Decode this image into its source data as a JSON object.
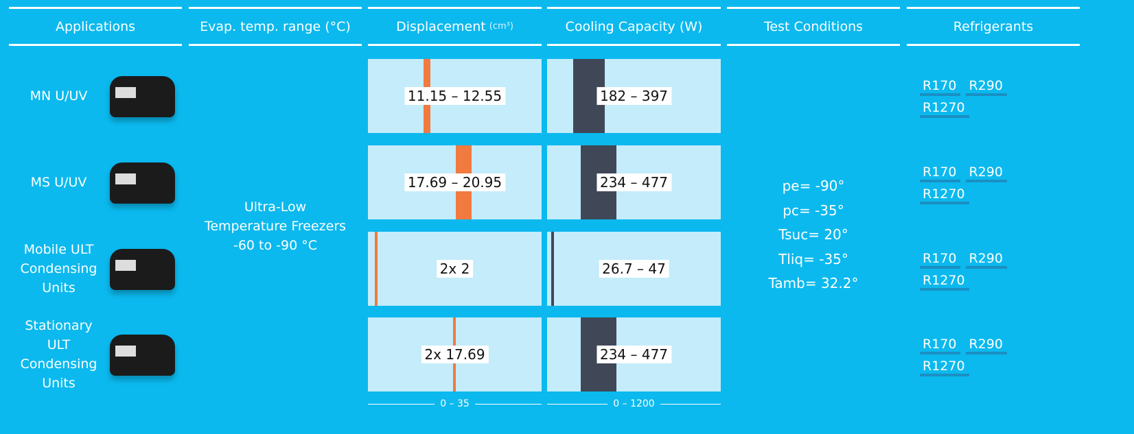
{
  "header": {
    "columns": [
      "Applications",
      "Evap. temp. range (°C)",
      "Displacement",
      "Cooling Capacity (W)",
      "Test Conditions",
      "Refrigerants"
    ],
    "displacement_unit": "(cm³)"
  },
  "evap_range": [
    "Ultra-Low",
    "Temperature Freezers",
    "-60 to -90 °C"
  ],
  "test_conditions": [
    "pe= -90°",
    "pc= -35°",
    "Tsuc= 20°",
    "Tliq= -35°",
    "Tamb= 32.2°"
  ],
  "scales": {
    "displacement": {
      "min": 0,
      "max": 35,
      "label": "0 – 35"
    },
    "capacity": {
      "min": 0,
      "max": 1200,
      "label": "0 – 1200"
    }
  },
  "rows": [
    {
      "application": [
        "MN U/UV"
      ],
      "displacement": {
        "min": 11.15,
        "max": 12.55,
        "label": "11.15 – 12.55"
      },
      "capacity": {
        "min": 182,
        "max": 397,
        "label": "182 – 397"
      },
      "refrigerants": [
        "R170",
        "R290",
        "R1270"
      ]
    },
    {
      "application": [
        "MS U/UV"
      ],
      "displacement": {
        "min": 17.69,
        "max": 20.95,
        "label": "17.69 – 20.95"
      },
      "capacity": {
        "min": 234,
        "max": 477,
        "label": "234 – 477"
      },
      "refrigerants": [
        "R170",
        "R290",
        "R1270"
      ]
    },
    {
      "application": [
        "Mobile ULT",
        "Condensing",
        "Units"
      ],
      "displacement": {
        "min": 2,
        "max": 2,
        "label": "2x 2"
      },
      "capacity": {
        "min": 26.7,
        "max": 47,
        "label": "26.7 – 47"
      },
      "refrigerants": [
        "R170",
        "R290",
        "R1270"
      ]
    },
    {
      "application": [
        "Stationary",
        "ULT",
        "Condensing",
        "Units"
      ],
      "displacement": {
        "min": 17.69,
        "max": 17.69,
        "label": "2x 17.69"
      },
      "capacity": {
        "min": 234,
        "max": 477,
        "label": "234 – 477"
      },
      "refrigerants": [
        "R170",
        "R290",
        "R1270"
      ]
    }
  ]
}
